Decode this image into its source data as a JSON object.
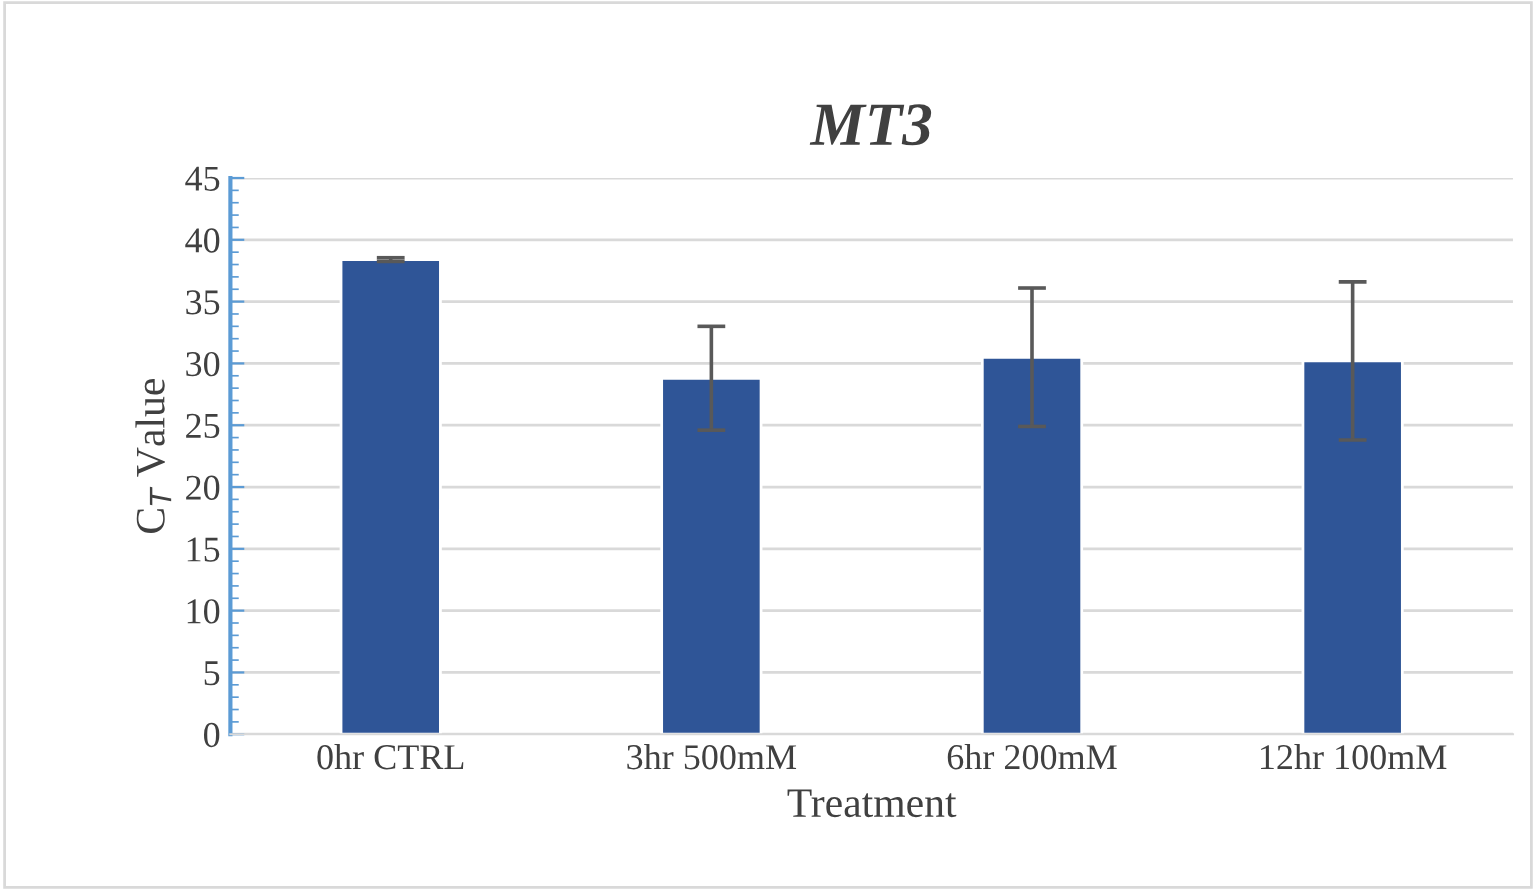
{
  "chart_data": {
    "type": "bar",
    "title": "MT3",
    "xlabel": "Treatment",
    "ylabel": "C$_{T}$ Value",
    "categories": [
      "0hr CTRL",
      "3hr 500mM",
      "6hr 200mM",
      "12hr 100mM"
    ],
    "values": [
      38.4,
      28.8,
      30.5,
      30.2
    ],
    "errors": [
      0.15,
      4.2,
      5.6,
      6.4
    ],
    "color": "#2f5597",
    "ylim": [
      0,
      45
    ],
    "yticks": [
      0,
      5,
      10,
      15,
      20,
      25,
      30,
      35,
      40,
      45
    ],
    "grid": "y"
  }
}
